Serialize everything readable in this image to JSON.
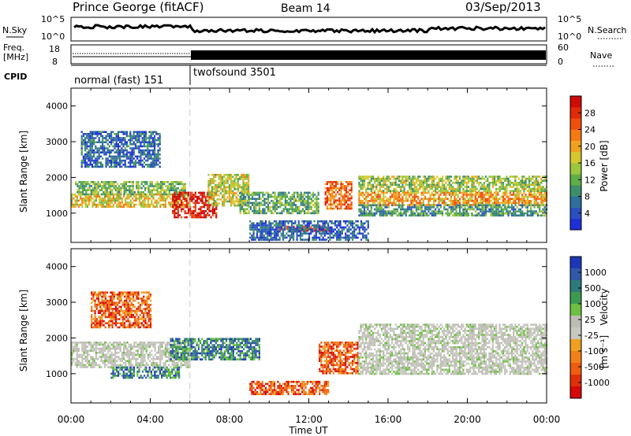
{
  "header": {
    "station": "Prince George (fitACF)",
    "beam": "Beam 14",
    "date": "03/Sep/2013"
  },
  "top_panels": {
    "nsky": {
      "label": "N.Sky",
      "ticks": [
        "10^5",
        "10^0"
      ],
      "right_label": "N.Search",
      "right_ticks": [
        "10^5",
        "10^0"
      ]
    },
    "freq": {
      "label": "Freq.",
      "unit": "[MHz]",
      "ticks": [
        "18",
        "8"
      ],
      "right_label": "Nave",
      "right_ticks": [
        "60",
        "0"
      ]
    },
    "cpid": {
      "label": "CPID",
      "segments": [
        {
          "name": "normal (fast) 151",
          "start_hour": 0,
          "end_hour": 6
        },
        {
          "name": "twofsound 3501",
          "start_hour": 6,
          "end_hour": 24
        }
      ]
    }
  },
  "chart_data": [
    {
      "type": "heatmap",
      "name": "power",
      "ylabel": "Slant Range [km]",
      "xlim": [
        0,
        24
      ],
      "ylim": [
        180,
        4500
      ],
      "yticks": [
        1000,
        2000,
        3000,
        4000
      ],
      "colorbar": {
        "label": "Power [dB]",
        "ticks": [
          "4",
          "8",
          "12",
          "16",
          "20",
          "24",
          "28"
        ],
        "colors": [
          "#1f2fd8",
          "#2a4fc0",
          "#2e6f9e",
          "#3c8f6a",
          "#5fae48",
          "#9cc63c",
          "#d6c92e",
          "#f0a21e",
          "#f47a12",
          "#f0500c",
          "#e02a08",
          "#d00a08"
        ]
      },
      "regions": [
        {
          "x": [
            0.0,
            6.0
          ],
          "y": [
            1150,
            1550
          ],
          "level": 0.55
        },
        {
          "x": [
            0.2,
            5.8
          ],
          "y": [
            1550,
            1900
          ],
          "level": 0.4
        },
        {
          "x": [
            5.1,
            7.3
          ],
          "y": [
            900,
            1600
          ],
          "level": 0.95
        },
        {
          "x": [
            6.9,
            9.0
          ],
          "y": [
            1200,
            2100
          ],
          "level": 0.5
        },
        {
          "x": [
            8.5,
            12.5
          ],
          "y": [
            1000,
            1600
          ],
          "level": 0.35
        },
        {
          "x": [
            10.5,
            13.0
          ],
          "y": [
            480,
            650
          ],
          "level": 0.85
        },
        {
          "x": [
            12.8,
            14.2
          ],
          "y": [
            1100,
            1900
          ],
          "level": 0.75
        },
        {
          "x": [
            14.5,
            24.0
          ],
          "y": [
            1250,
            1600
          ],
          "level": 0.65
        },
        {
          "x": [
            14.5,
            24.0
          ],
          "y": [
            1600,
            2050
          ],
          "level": 0.45
        },
        {
          "x": [
            14.5,
            24.0
          ],
          "y": [
            950,
            1250
          ],
          "level": 0.3
        },
        {
          "x": [
            0.5,
            4.5
          ],
          "y": [
            2300,
            3300
          ],
          "level": 0.18
        },
        {
          "x": [
            9.0,
            15.0
          ],
          "y": [
            250,
            800
          ],
          "level": 0.15
        }
      ]
    },
    {
      "type": "heatmap",
      "name": "velocity",
      "xlabel": "Time UT",
      "ylabel": "Slant Range [km]",
      "xlim": [
        0,
        24
      ],
      "ylim": [
        180,
        4500
      ],
      "xticks": [
        "00:00",
        "04:00",
        "08:00",
        "12:00",
        "16:00",
        "20:00",
        "00:00"
      ],
      "yticks": [
        1000,
        2000,
        3000,
        4000
      ],
      "colorbar": {
        "label": "Velocity",
        "unit": "[m s⁻¹]",
        "ticks": [
          "1000",
          "500",
          "100",
          "25",
          "-25",
          "-100",
          "-500",
          "-1000"
        ],
        "colors": [
          "#1c38b8",
          "#2e5aa8",
          "#2e7a7a",
          "#3c9a50",
          "#6cc040",
          "#bdbdb5",
          "#c8c8c0",
          "#f0a020",
          "#f08018",
          "#f05c10",
          "#e03008",
          "#d80808"
        ]
      },
      "regions": [
        {
          "x": [
            0.0,
            6.0
          ],
          "y": [
            1200,
            1900
          ],
          "kind": "ground"
        },
        {
          "x": [
            2.0,
            5.5
          ],
          "y": [
            900,
            1200
          ],
          "kind": "positive"
        },
        {
          "x": [
            5.0,
            9.5
          ],
          "y": [
            1400,
            2000
          ],
          "kind": "positive"
        },
        {
          "x": [
            9.0,
            13.0
          ],
          "y": [
            400,
            800
          ],
          "kind": "negative"
        },
        {
          "x": [
            12.5,
            14.5
          ],
          "y": [
            1000,
            1900
          ],
          "kind": "negative"
        },
        {
          "x": [
            14.5,
            24.0
          ],
          "y": [
            1000,
            2400
          ],
          "kind": "ground"
        },
        {
          "x": [
            1.0,
            4.0
          ],
          "y": [
            2300,
            3300
          ],
          "kind": "negative"
        }
      ]
    }
  ]
}
